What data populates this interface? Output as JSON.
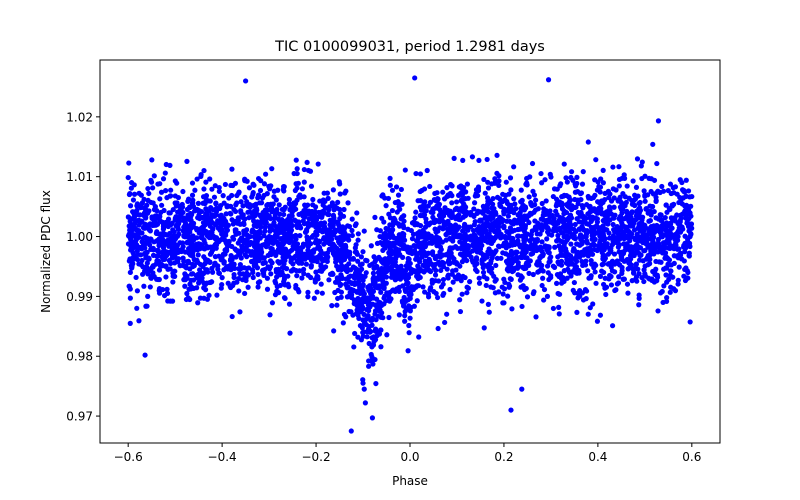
{
  "chart_data": {
    "type": "scatter",
    "title": "TIC 0100099031, period 1.2981 days",
    "xlabel": "Phase",
    "ylabel": "Normalized PDC flux",
    "xlim": [
      -0.66,
      0.66
    ],
    "ylim": [
      0.9655,
      1.0295
    ],
    "xticks": [
      -0.6,
      -0.4,
      -0.2,
      0.0,
      0.2,
      0.4,
      0.6
    ],
    "xtick_labels": [
      "−0.6",
      "−0.4",
      "−0.2",
      "0.0",
      "0.2",
      "0.4",
      "0.6"
    ],
    "yticks": [
      0.97,
      0.98,
      0.99,
      1.0,
      1.01,
      1.02
    ],
    "ytick_labels": [
      "0.97",
      "0.98",
      "0.99",
      "1.00",
      "1.01",
      "1.02"
    ],
    "grid": false,
    "marker_color": "#0000ff",
    "series": [
      {
        "name": "flux",
        "phase_range": [
          -0.6,
          0.6
        ],
        "baseline": 1.0,
        "scatter_sigma": 0.0048,
        "n_points": 4200,
        "dips": [
          {
            "center": -0.09,
            "depth": 0.012,
            "halfwidth": 0.03
          },
          {
            "center": 0.0,
            "depth": 0.008,
            "halfwidth": 0.01
          }
        ],
        "notable_points": [
          {
            "x": 0.01,
            "y": 1.0265
          },
          {
            "x": -0.35,
            "y": 1.026
          },
          {
            "x": 0.295,
            "y": 1.0262
          },
          {
            "x": -0.125,
            "y": 0.9675
          },
          {
            "x": -0.08,
            "y": 0.9697
          },
          {
            "x": 0.215,
            "y": 0.971
          },
          {
            "x": 0.238,
            "y": 0.9745
          },
          {
            "x": -0.095,
            "y": 0.9722
          },
          {
            "x": -0.1,
            "y": 0.9755
          }
        ]
      }
    ]
  }
}
